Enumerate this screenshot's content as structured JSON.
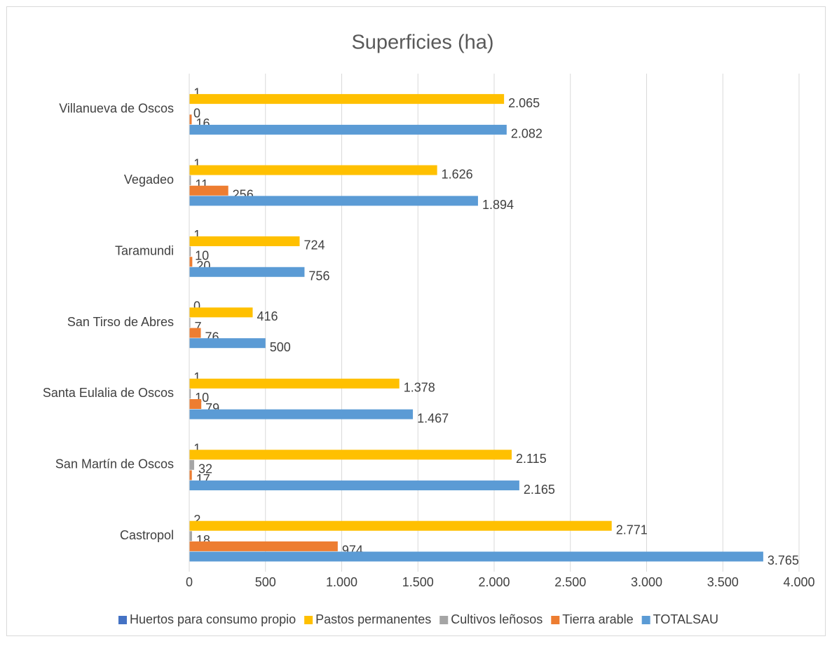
{
  "chart_data": {
    "type": "bar",
    "orientation": "horizontal",
    "title": "Superficies (ha)",
    "categories": [
      "Castropol",
      "San Martín de Oscos",
      "Santa Eulalia de Oscos",
      "San Tirso de Abres",
      "Taramundi",
      "Vegadeo",
      "Villanueva de Oscos"
    ],
    "series": [
      {
        "name": "Huertos para consumo propio",
        "color": "#4472c4",
        "values": [
          2,
          1,
          1,
          0,
          1,
          1,
          1
        ]
      },
      {
        "name": "Pastos permanentes",
        "color": "#ffc000",
        "values": [
          2771,
          2115,
          1378,
          416,
          724,
          1626,
          2065
        ],
        "value_labels": [
          "2.771",
          "2.115",
          "1.378",
          "416",
          "724",
          "1.626",
          "2.065"
        ]
      },
      {
        "name": "Cultivos leñosos",
        "color": "#a5a5a5",
        "values": [
          18,
          32,
          10,
          7,
          10,
          11,
          0
        ]
      },
      {
        "name": "Tierra arable",
        "color": "#ed7d31",
        "values": [
          974,
          17,
          79,
          76,
          20,
          256,
          16
        ]
      },
      {
        "name": "TOTALSAU",
        "color": "#5b9bd5",
        "values": [
          3765,
          2165,
          1467,
          500,
          756,
          1894,
          2082
        ],
        "value_labels": [
          "3.765",
          "2.165",
          "1.467",
          "500",
          "756",
          "1.894",
          "2.082"
        ]
      }
    ],
    "xlim": [
      0,
      4000
    ],
    "xticks": [
      0,
      500,
      {
        "value": 1000,
        "label": "1.000"
      },
      {
        "value": 1500,
        "label": "1.500"
      },
      {
        "value": 2000,
        "label": "2.000"
      },
      {
        "value": 2500,
        "label": "2.500"
      },
      {
        "value": 3000,
        "label": "3.000"
      },
      {
        "value": 3500,
        "label": "3.500"
      },
      {
        "value": 4000,
        "label": "4.000"
      }
    ],
    "grid": true,
    "legend": "bottom"
  }
}
